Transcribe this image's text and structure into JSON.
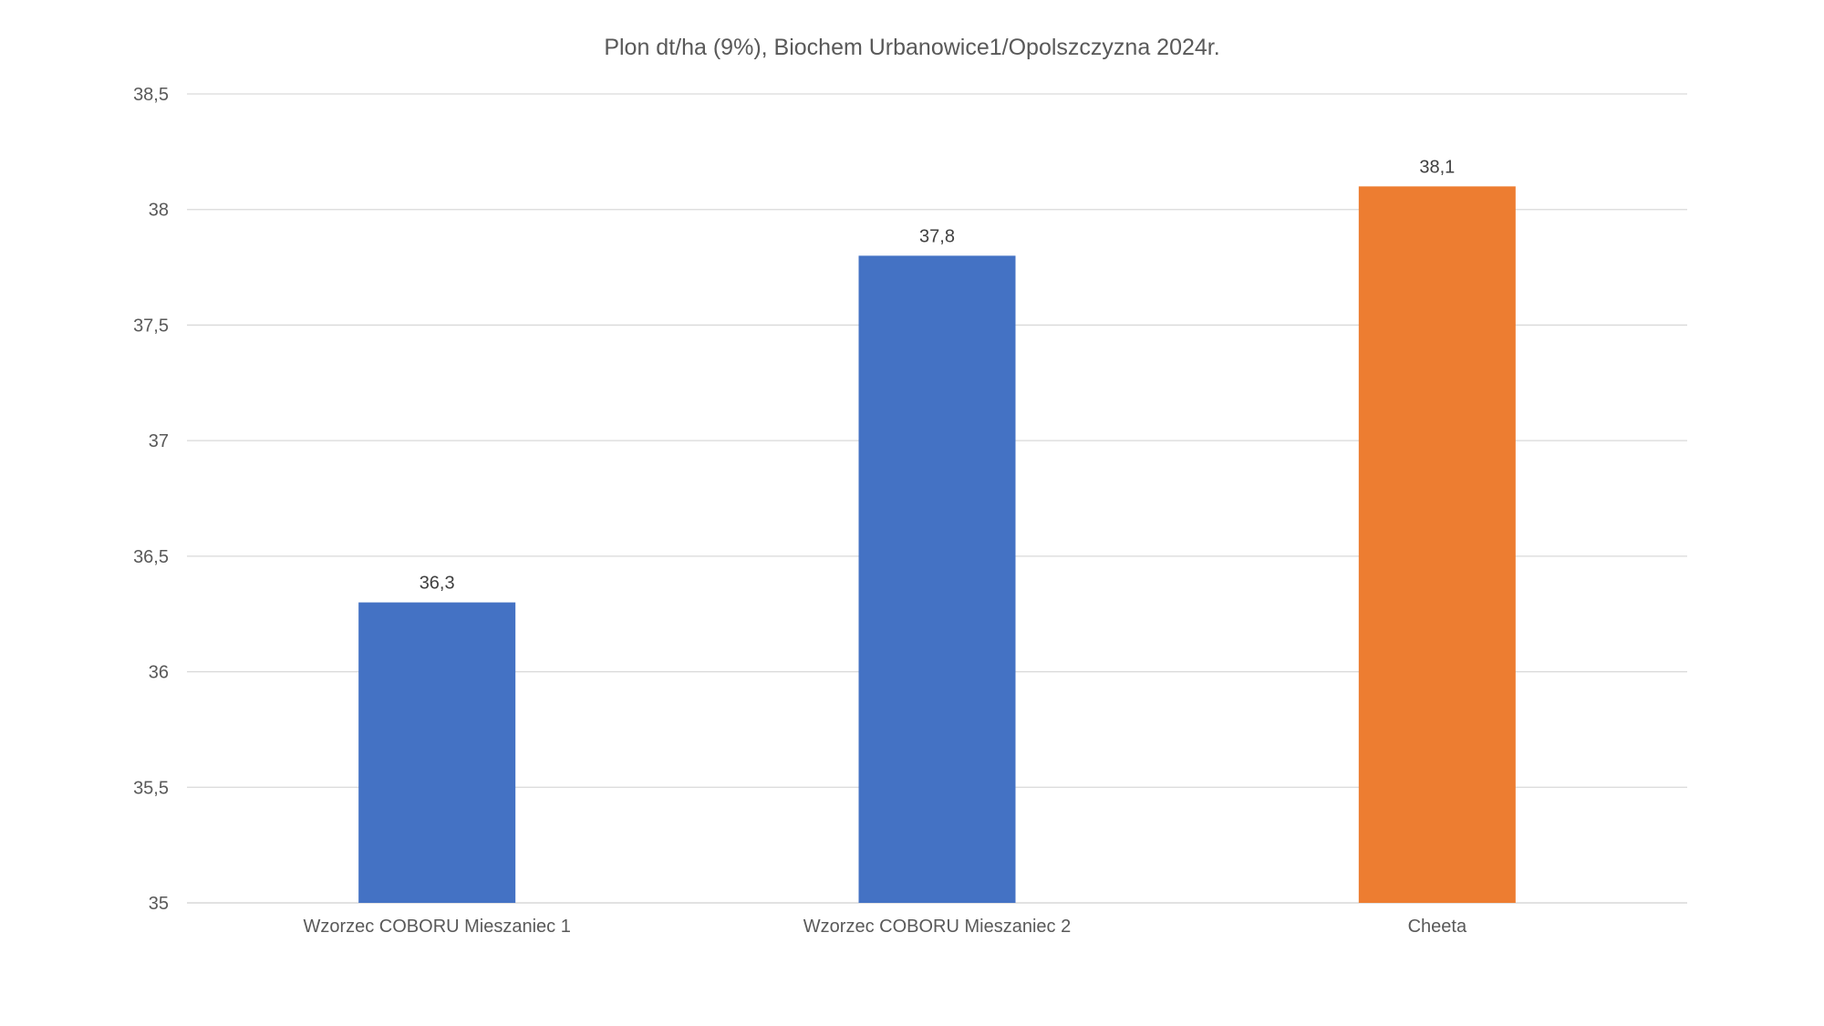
{
  "chart_data": {
    "type": "bar",
    "title": "Plon dt/ha (9%), Biochem Urbanowice1/Opolszczyzna 2024r.",
    "categories": [
      "Wzorzec COBORU Mieszaniec 1",
      "Wzorzec COBORU Mieszaniec 2",
      "Cheeta"
    ],
    "values": [
      36.3,
      37.8,
      38.1
    ],
    "value_labels": [
      "36,3",
      "37,8",
      "38,1"
    ],
    "bar_colors": [
      "#4472C4",
      "#4472C4",
      "#ED7D31"
    ],
    "xlabel": "",
    "ylabel": "",
    "ylim": [
      35,
      38.5
    ],
    "yticks": [
      35,
      35.5,
      36,
      36.5,
      37,
      37.5,
      38,
      38.5
    ],
    "ytick_labels": [
      "35",
      "35,5",
      "36",
      "36,5",
      "37",
      "37,5",
      "38",
      "38,5"
    ],
    "grid": true,
    "legend": "none"
  }
}
